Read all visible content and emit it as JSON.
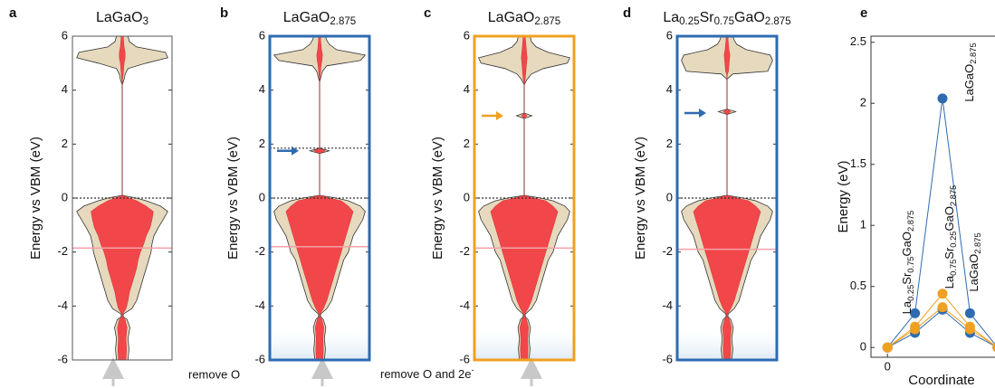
{
  "chart_data": [
    {
      "type": "dos",
      "panel": "a",
      "title": "LaGaO3",
      "color": "#222222",
      "frame_color": "#555555",
      "ylabel": "Energy vs VBM (eV)",
      "ylim": [
        -6,
        6
      ],
      "yticks": [
        -6,
        -4,
        -2,
        0,
        2,
        4,
        6
      ],
      "dotted_lines": [
        0
      ],
      "pink_line": -1.85,
      "energy": [
        -6,
        -5.6,
        -5.2,
        -4.8,
        -4.5,
        -4.4,
        -4.3,
        -4.1,
        -3.8,
        -3.5,
        -3.2,
        -2.9,
        -2.6,
        -2.3,
        -2,
        -1.7,
        -1.4,
        -1.1,
        -0.8,
        -0.5,
        -0.3,
        -0.1,
        0,
        0.1,
        4.2,
        4.4,
        4.6,
        4.8,
        5,
        5.2,
        5.4,
        5.6,
        5.8,
        6
      ],
      "total": [
        0.12,
        0.14,
        0.12,
        0.16,
        0.1,
        0.02,
        0.02,
        0.2,
        0.3,
        0.35,
        0.4,
        0.45,
        0.5,
        0.55,
        0.6,
        0.62,
        0.66,
        0.75,
        0.85,
        0.95,
        0.8,
        0.5,
        0.3,
        0,
        0,
        0.04,
        0.06,
        0.12,
        0.5,
        0.95,
        0.9,
        0.3,
        0.15,
        0.12
      ],
      "projected": [
        0.08,
        0.09,
        0.08,
        0.1,
        0.06,
        0.01,
        0.01,
        0.08,
        0.12,
        0.15,
        0.2,
        0.25,
        0.3,
        0.33,
        0.38,
        0.45,
        0.5,
        0.58,
        0.62,
        0.65,
        0.5,
        0.3,
        0.15,
        0,
        0,
        0.01,
        0.02,
        0.03,
        0.04,
        0.06,
        0.06,
        0.04,
        0.03,
        0.02
      ]
    },
    {
      "type": "dos",
      "panel": "b",
      "title": "LaGaO2.875",
      "color": "#2e6bb0",
      "frame_color": "#2e6bb0",
      "ylabel": "Energy vs VBM (eV)",
      "ylim": [
        -6,
        6
      ],
      "yticks": [
        -6,
        -4,
        -2,
        0,
        2,
        4,
        6
      ],
      "dotted_lines": [
        0,
        1.85
      ],
      "pink_line": -1.8,
      "arrow_energy": 1.75,
      "energy": [
        -6,
        -5.6,
        -5.2,
        -4.8,
        -4.5,
        -4.4,
        -4.3,
        -4.1,
        -3.8,
        -3.5,
        -3.2,
        -2.9,
        -2.6,
        -2.3,
        -2,
        -1.7,
        -1.4,
        -1.1,
        -0.8,
        -0.5,
        -0.3,
        -0.1,
        0,
        0.1,
        1.65,
        1.75,
        1.85,
        4.3,
        4.5,
        4.7,
        4.9,
        5.1,
        5.3,
        5.5,
        5.7,
        5.85,
        6
      ],
      "total": [
        0.1,
        0.12,
        0.1,
        0.13,
        0.08,
        0.02,
        0.02,
        0.15,
        0.25,
        0.3,
        0.35,
        0.4,
        0.45,
        0.5,
        0.6,
        0.65,
        0.7,
        0.8,
        0.9,
        0.95,
        0.85,
        0.6,
        0.35,
        0,
        0,
        0.2,
        0,
        0,
        0.03,
        0.06,
        0.15,
        0.85,
        0.95,
        0.35,
        0.2,
        0.15,
        0.12
      ],
      "projected": [
        0.07,
        0.08,
        0.07,
        0.09,
        0.05,
        0.01,
        0.01,
        0.08,
        0.15,
        0.2,
        0.25,
        0.3,
        0.35,
        0.4,
        0.45,
        0.5,
        0.55,
        0.6,
        0.65,
        0.7,
        0.6,
        0.45,
        0.2,
        0,
        0,
        0.12,
        0,
        0,
        0.01,
        0.02,
        0.03,
        0.05,
        0.06,
        0.04,
        0.03,
        0.02,
        0.02
      ]
    },
    {
      "type": "dos",
      "panel": "c",
      "title": "LaGaO2.875",
      "color": "#f0a020",
      "frame_color": "#f0a020",
      "ylabel": "Energy vs VBM (eV)",
      "ylim": [
        -6,
        6
      ],
      "yticks": [
        -6,
        -4,
        -2,
        0,
        2,
        4,
        6
      ],
      "dotted_lines": [
        0
      ],
      "pink_line": -1.85,
      "arrow_energy": 3.05,
      "energy": [
        -6,
        -5.6,
        -5.2,
        -4.8,
        -4.5,
        -4.4,
        -4.3,
        -4.1,
        -3.8,
        -3.5,
        -3.2,
        -2.9,
        -2.6,
        -2.3,
        -2,
        -1.7,
        -1.4,
        -1.1,
        -0.8,
        -0.5,
        -0.3,
        -0.1,
        0,
        0.1,
        2.95,
        3.05,
        3.15,
        4.2,
        4.4,
        4.6,
        4.8,
        5,
        5.2,
        5.4,
        5.6,
        5.8,
        6
      ],
      "total": [
        0.1,
        0.12,
        0.1,
        0.13,
        0.08,
        0.02,
        0.02,
        0.15,
        0.25,
        0.3,
        0.35,
        0.4,
        0.45,
        0.5,
        0.6,
        0.65,
        0.7,
        0.8,
        0.9,
        0.95,
        0.85,
        0.6,
        0.35,
        0,
        0,
        0.16,
        0,
        0,
        0.06,
        0.15,
        0.4,
        0.9,
        0.95,
        0.5,
        0.25,
        0.15,
        0.12
      ],
      "projected": [
        0.07,
        0.08,
        0.07,
        0.09,
        0.05,
        0.01,
        0.01,
        0.08,
        0.15,
        0.2,
        0.25,
        0.3,
        0.35,
        0.4,
        0.45,
        0.5,
        0.55,
        0.6,
        0.65,
        0.7,
        0.6,
        0.45,
        0.2,
        0,
        0,
        0.06,
        0,
        0,
        0.02,
        0.03,
        0.04,
        0.05,
        0.06,
        0.05,
        0.04,
        0.03,
        0.02
      ]
    },
    {
      "type": "dos",
      "panel": "d",
      "title": "La0.25Sr0.75GaO2.875",
      "color": "#2e6bb0",
      "frame_color": "#2e6bb0",
      "ylabel": "Energy vs VBM (eV)",
      "ylim": [
        -6,
        6
      ],
      "yticks": [
        -6,
        -4,
        -2,
        0,
        2,
        4,
        6
      ],
      "dotted_lines": [
        0
      ],
      "pink_line": -1.9,
      "arrow_energy": 3.15,
      "energy": [
        -6,
        -5.6,
        -5.2,
        -4.8,
        -4.5,
        -4.4,
        -4.3,
        -4.1,
        -3.8,
        -3.5,
        -3.2,
        -2.9,
        -2.6,
        -2.3,
        -2,
        -1.7,
        -1.4,
        -1.1,
        -0.8,
        -0.5,
        -0.3,
        -0.1,
        0,
        0.1,
        3.1,
        3.2,
        3.3,
        4.4,
        4.6,
        4.7,
        4.9,
        5.1,
        5.3,
        5.5,
        5.7,
        5.85,
        6
      ],
      "total": [
        0.1,
        0.12,
        0.1,
        0.13,
        0.08,
        0.02,
        0.02,
        0.15,
        0.25,
        0.3,
        0.35,
        0.4,
        0.45,
        0.5,
        0.6,
        0.65,
        0.7,
        0.8,
        0.9,
        0.95,
        0.85,
        0.6,
        0.35,
        0,
        0,
        0.18,
        0,
        0,
        0.12,
        0.85,
        0.9,
        0.95,
        0.9,
        0.4,
        0.2,
        0.15,
        0.12
      ],
      "projected": [
        0.07,
        0.08,
        0.07,
        0.09,
        0.05,
        0.01,
        0.01,
        0.08,
        0.15,
        0.2,
        0.25,
        0.3,
        0.35,
        0.4,
        0.45,
        0.5,
        0.55,
        0.6,
        0.65,
        0.7,
        0.6,
        0.45,
        0.2,
        0,
        0,
        0.08,
        0,
        0,
        0.01,
        0.03,
        0.04,
        0.05,
        0.06,
        0.04,
        0.03,
        0.02,
        0.02
      ]
    },
    {
      "type": "line",
      "panel": "e",
      "xlabel": "Coordinate",
      "ylabel": "Energy (eV)",
      "x": [
        0,
        0.25,
        0.5,
        0.75,
        1
      ],
      "xlim": [
        -0.15,
        1.15
      ],
      "xticks": [
        0
      ],
      "ylim": [
        -0.08,
        2.55
      ],
      "yticks": [
        0,
        0.5,
        1,
        1.5,
        2,
        2.5
      ],
      "series": [
        {
          "name": "LaGaO2.875",
          "color": "#2e6bb0",
          "values": [
            0,
            0.28,
            2.04,
            0.28,
            0
          ]
        },
        {
          "name": "La0.25Sr0.75GaO2.875",
          "color": "#2e6bb0",
          "values": [
            0,
            0.12,
            0.31,
            0.12,
            0
          ]
        },
        {
          "name": "La0.75Sr0.25GaO2.875",
          "color": "#f0a020",
          "values": [
            0,
            0.17,
            0.44,
            0.17,
            0
          ]
        },
        {
          "name": "LaGaO2.875",
          "color": "#f0a020",
          "values": [
            0,
            0.15,
            0.33,
            0.15,
            0
          ]
        }
      ]
    }
  ],
  "annotations": [
    "remove O",
    "remove O and 2e-"
  ]
}
